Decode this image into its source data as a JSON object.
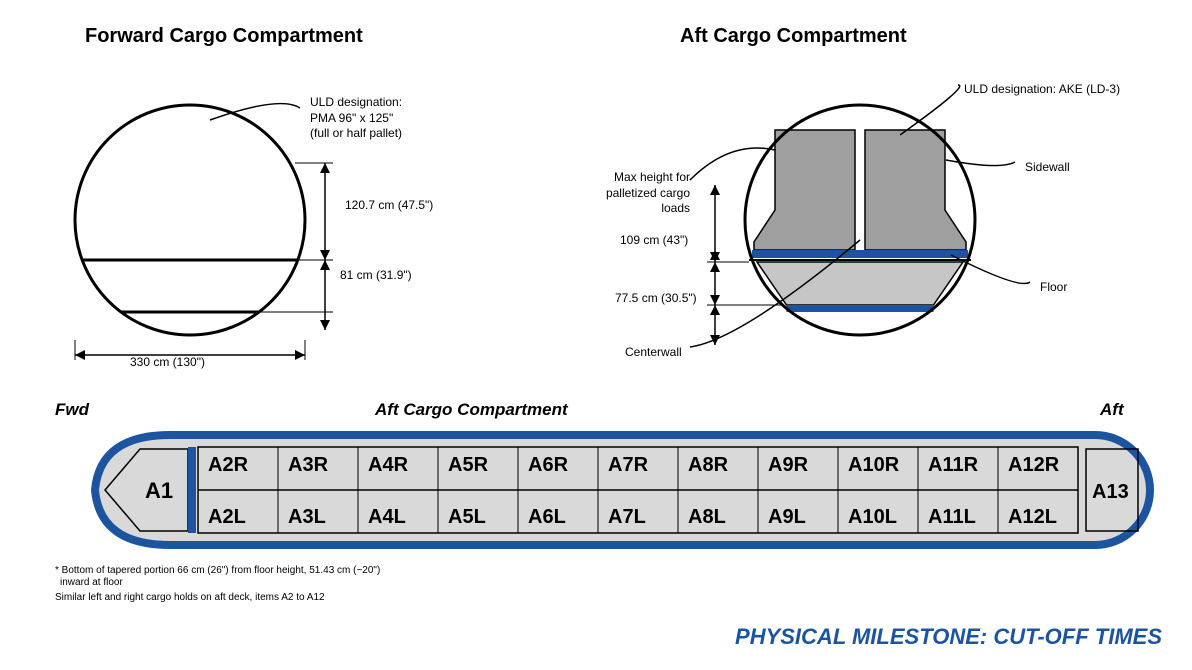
{
  "headings": {
    "fwd": "Forward Cargo Compartment",
    "aft": "Aft Cargo Compartment"
  },
  "cross_section": {
    "stroke": "#000000",
    "stroke_width": 3,
    "center_bg": "#ffffff",
    "fwd": {
      "ULD_design": {
        "line1": "ULD designation:",
        "line2": "PMA 96\" x 125\"",
        "line3": "(full or half pallet)"
      },
      "max_height": "120.7 cm (47.5\")",
      "floor_height": "81 cm (31.9\")",
      "width": "330 cm (130\")"
    },
    "aft": {
      "ULD_design": "ULD designation: AKE (LD-3)",
      "max_height_label": "Max height for palletized cargo loads",
      "max_height": "109 cm (43\")",
      "floor_height": "77.5 cm (30.5\")",
      "sidewall": "Sidewall",
      "centerwall": "Centerwall",
      "floor": "Floor",
      "colors": {
        "ld3_light": "#c6c6c6",
        "ld3_dark": "#9f9f9f",
        "belt": "#1c54a0"
      }
    }
  },
  "fuselage": {
    "outline_color": "#1c54a0",
    "outline_width": 8,
    "bg": "#d9d9d9",
    "nose_label": "A1",
    "tail_label": "A13",
    "columns": [
      2,
      3,
      4,
      5,
      6,
      7,
      8,
      9,
      10,
      11,
      12
    ],
    "belt_color": "#1c54a0"
  },
  "footnotes": {
    "note1": "* Bottom of tapered portion 66 cm (26\") from floor height, 51.43 cm (~20\")",
    "note2": "inward at floor",
    "plan_left": "Fwd",
    "plan_right": "Aft",
    "plan_note": "Similar left and right cargo holds on aft deck, items A2 to A12"
  },
  "banner": {
    "text": "PHYSICAL MILESTONE: CUT-OFF TIMES",
    "color": "#1c54a0"
  }
}
